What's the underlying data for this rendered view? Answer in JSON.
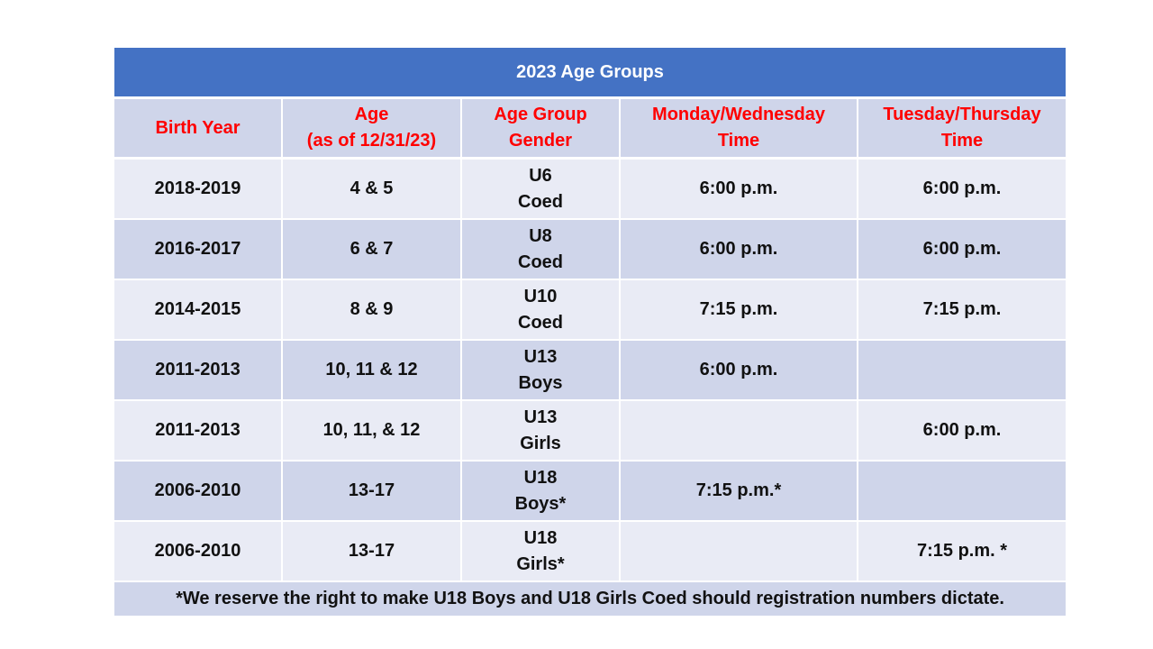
{
  "table": {
    "title": "2023 Age Groups",
    "headers": [
      {
        "line1": "Birth Year",
        "line2": ""
      },
      {
        "line1": "Age",
        "line2": "(as of 12/31/23)"
      },
      {
        "line1": "Age Group",
        "line2": "Gender"
      },
      {
        "line1": "Monday/Wednesday",
        "line2": "Time"
      },
      {
        "line1": "Tuesday/Thursday",
        "line2": "Time"
      }
    ],
    "rows": [
      {
        "birth_year": "2018-2019",
        "age": "4 & 5",
        "group": "U6",
        "gender": "Coed",
        "mon_wed": "6:00 p.m.",
        "tue_thu": "6:00 p.m."
      },
      {
        "birth_year": "2016-2017",
        "age": "6 & 7",
        "group": "U8",
        "gender": "Coed",
        "mon_wed": "6:00 p.m.",
        "tue_thu": "6:00 p.m."
      },
      {
        "birth_year": "2014-2015",
        "age": "8 & 9",
        "group": "U10",
        "gender": "Coed",
        "mon_wed": "7:15 p.m.",
        "tue_thu": "7:15 p.m."
      },
      {
        "birth_year": "2011-2013",
        "age": "10, 11 & 12",
        "group": "U13",
        "gender": "Boys",
        "mon_wed": "6:00 p.m.",
        "tue_thu": ""
      },
      {
        "birth_year": "2011-2013",
        "age": "10, 11, & 12",
        "group": "U13",
        "gender": "Girls",
        "mon_wed": "",
        "tue_thu": "6:00 p.m."
      },
      {
        "birth_year": "2006-2010",
        "age": "13-17",
        "group": "U18",
        "gender": "Boys*",
        "mon_wed": "7:15 p.m.*",
        "tue_thu": ""
      },
      {
        "birth_year": "2006-2010",
        "age": "13-17",
        "group": "U18",
        "gender": "Girls*",
        "mon_wed": "",
        "tue_thu": "7:15 p.m. *"
      }
    ],
    "footnote": "*We reserve the right to make U18 Boys and U18 Girls Coed should registration numbers dictate."
  },
  "colors": {
    "title_bg": "#4472c4",
    "title_text": "#ffffff",
    "header_text": "#ff0000",
    "row_light": "#e9ebf5",
    "row_dark": "#cfd5ea"
  }
}
